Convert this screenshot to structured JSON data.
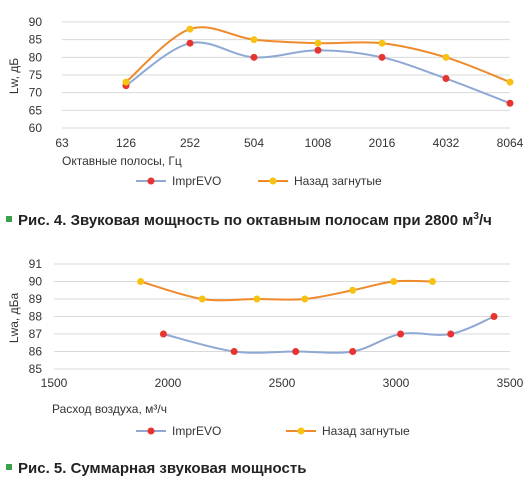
{
  "colors": {
    "series1": "#8fa8d4",
    "series1_marker": "#e8332e",
    "series2": "#ee8a2c",
    "series2_marker": "#f7c214",
    "grid": "#d9d9d9",
    "bullet": "#3aa24b"
  },
  "captions": {
    "fig4": {
      "text": "Рис. 4. Звуковая мощность по октавным полосам при 2800 м",
      "sup": "3",
      "tail": "/ч"
    },
    "fig5": {
      "text": "Рис. 5. Суммарная звуковая мощность"
    }
  },
  "chart_data": [
    {
      "type": "line",
      "title": "",
      "xlabel": "Октавные полосы, Гц",
      "ylabel": "Lw, дБ",
      "categories": [
        "63",
        "126",
        "252",
        "504",
        "1008",
        "2016",
        "4032",
        "8064"
      ],
      "ylim": [
        60,
        90
      ],
      "yticks": [
        "60",
        "65",
        "70",
        "75",
        "80",
        "85",
        "90"
      ],
      "grid": true,
      "legend": "bottom",
      "series": [
        {
          "name": "ImprEVO",
          "values": [
            null,
            72,
            84,
            80,
            82,
            80,
            74,
            67
          ]
        },
        {
          "name": "Назад загнутые",
          "values": [
            null,
            73,
            88,
            85,
            84,
            84,
            80,
            73
          ]
        }
      ]
    },
    {
      "type": "line",
      "title": "",
      "xlabel": "Расход воздуха, м³/ч",
      "ylabel": "Lwa, дБа",
      "xlim": [
        1500,
        3500
      ],
      "xticks": [
        "1500",
        "2000",
        "2500",
        "3000",
        "3500"
      ],
      "ylim": [
        85,
        91
      ],
      "yticks": [
        "85",
        "86",
        "87",
        "88",
        "89",
        "90",
        "91"
      ],
      "grid": true,
      "legend": "bottom",
      "series": [
        {
          "name": "ImprEVO",
          "x": [
            1980,
            2290,
            2560,
            2810,
            3020,
            3240,
            3430
          ],
          "y": [
            87,
            86,
            86,
            86,
            87,
            87,
            88
          ]
        },
        {
          "name": "Назад загнутые",
          "x": [
            1880,
            2150,
            2390,
            2600,
            2810,
            2990,
            3160
          ],
          "y": [
            90,
            89,
            89,
            89,
            89.5,
            90,
            90
          ]
        }
      ]
    }
  ]
}
